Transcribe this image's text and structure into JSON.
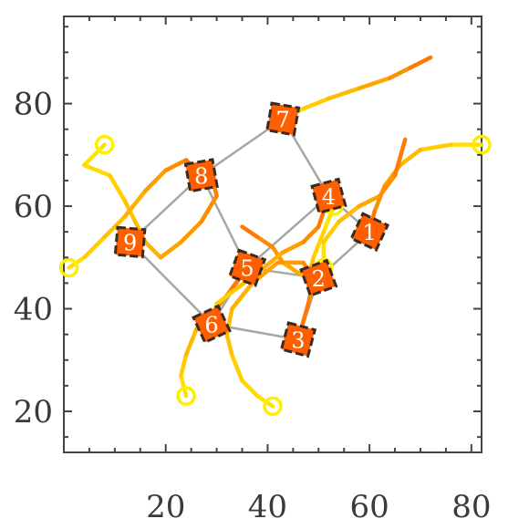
{
  "chart_data": {
    "type": "scatter",
    "title": "",
    "xlabel": "",
    "ylabel": "",
    "xlim": [
      0,
      82
    ],
    "ylim": [
      12,
      97
    ],
    "x_ticks": [
      "20",
      "40",
      "60",
      "80"
    ],
    "y_ticks": [
      "20",
      "40",
      "60",
      "80"
    ],
    "grid": false,
    "legend": "none",
    "colors": {
      "edge": "#a6a6a6",
      "robot_fill": "#ff5f00",
      "robot_edge": "#3a2a20",
      "start_marker": "#ffee00",
      "trail_gradient": [
        "#ffe800",
        "#ffb000",
        "#ff7000"
      ]
    },
    "robots": [
      {
        "id": "1",
        "x": 60,
        "y": 55
      },
      {
        "id": "2",
        "x": 50,
        "y": 46
      },
      {
        "id": "3",
        "x": 46,
        "y": 34
      },
      {
        "id": "4",
        "x": 52,
        "y": 62
      },
      {
        "id": "5",
        "x": 36,
        "y": 48
      },
      {
        "id": "6",
        "x": 29,
        "y": 37
      },
      {
        "id": "7",
        "x": 43,
        "y": 77
      },
      {
        "id": "8",
        "x": 27,
        "y": 66
      },
      {
        "id": "9",
        "x": 13,
        "y": 53
      }
    ],
    "edges": [
      [
        "9",
        "8"
      ],
      [
        "9",
        "6"
      ],
      [
        "8",
        "7"
      ],
      [
        "8",
        "5"
      ],
      [
        "7",
        "4"
      ],
      [
        "4",
        "1"
      ],
      [
        "4",
        "5"
      ],
      [
        "1",
        "2"
      ],
      [
        "2",
        "3"
      ],
      [
        "3",
        "6"
      ],
      [
        "6",
        "5"
      ],
      [
        "5",
        "2"
      ]
    ],
    "trajectories": [
      {
        "robot": "1",
        "points": [
          [
            82,
            72
          ],
          [
            76,
            72
          ],
          [
            70,
            71
          ],
          [
            66,
            68
          ],
          [
            63,
            64
          ],
          [
            61,
            59
          ],
          [
            60,
            55
          ]
        ]
      },
      {
        "robot": "2",
        "points": [
          [
            51,
            48
          ],
          [
            51,
            53
          ],
          [
            54,
            57
          ],
          [
            58,
            60
          ],
          [
            62,
            62
          ],
          [
            65,
            66
          ],
          [
            67,
            73
          ]
        ]
      },
      {
        "robot": "3",
        "points": [
          [
            41,
            21
          ],
          [
            38,
            23
          ],
          [
            35,
            26
          ],
          [
            33,
            31
          ],
          [
            32,
            35
          ],
          [
            33,
            40
          ],
          [
            37,
            45
          ],
          [
            42,
            49
          ],
          [
            47,
            49
          ],
          [
            49,
            46
          ],
          [
            48,
            41
          ],
          [
            46,
            34
          ]
        ]
      },
      {
        "robot": "4",
        "points": [
          [
            53,
            60
          ],
          [
            51,
            55
          ],
          [
            49,
            50
          ],
          [
            48,
            46
          ],
          [
            46,
            47
          ],
          [
            43,
            49
          ],
          [
            41,
            52
          ],
          [
            38,
            54
          ],
          [
            35,
            56
          ]
        ]
      },
      {
        "robot": "5",
        "points": [
          [
            24,
            23
          ],
          [
            23,
            27
          ],
          [
            24,
            31
          ],
          [
            26,
            36
          ],
          [
            30,
            40
          ],
          [
            33,
            44
          ],
          [
            36,
            48
          ]
        ]
      },
      {
        "robot": "6",
        "points": [
          [
            29,
            37
          ],
          [
            30,
            41
          ],
          [
            34,
            44
          ],
          [
            38,
            47
          ],
          [
            43,
            51
          ],
          [
            47,
            53
          ],
          [
            50,
            56
          ],
          [
            52,
            62
          ]
        ]
      },
      {
        "robot": "7",
        "points": [
          [
            43,
            77
          ],
          [
            47,
            79
          ],
          [
            52,
            81
          ],
          [
            58,
            83
          ],
          [
            64,
            85
          ],
          [
            68,
            87
          ],
          [
            72,
            89
          ]
        ]
      },
      {
        "robot": "8",
        "points": [
          [
            8,
            72
          ],
          [
            4,
            68
          ],
          [
            9,
            66
          ],
          [
            12,
            61
          ],
          [
            14,
            57
          ],
          [
            16,
            53
          ],
          [
            19,
            50
          ],
          [
            23,
            53
          ],
          [
            27,
            57
          ],
          [
            30,
            62
          ],
          [
            29,
            66
          ],
          [
            27,
            66
          ]
        ]
      },
      {
        "robot": "9",
        "points": [
          [
            1,
            48
          ],
          [
            4,
            50
          ],
          [
            8,
            54
          ],
          [
            12,
            58
          ],
          [
            16,
            63
          ],
          [
            20,
            67
          ],
          [
            24,
            69
          ],
          [
            27,
            66
          ]
        ]
      }
    ]
  }
}
